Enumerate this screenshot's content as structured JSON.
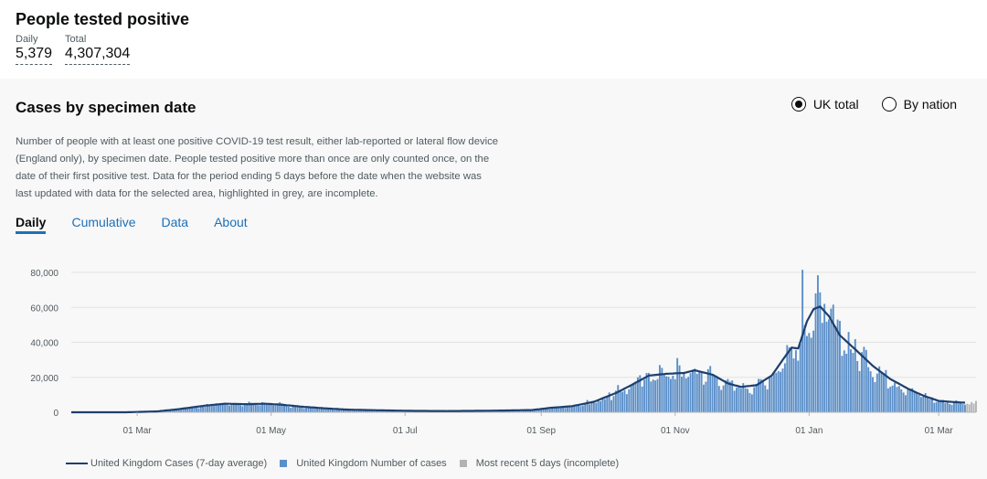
{
  "header": {
    "title": "People tested positive",
    "daily_label": "Daily",
    "daily_value": "5,379",
    "total_label": "Total",
    "total_value": "4,307,304"
  },
  "card": {
    "title": "Cases by specimen date",
    "radio_uk": "UK total",
    "radio_nation": "By nation",
    "selected_radio": "UK total",
    "description": "Number of people with at least one positive COVID-19 test result, either lab-reported or lateral flow device (England only), by specimen date. People tested positive more than once are only counted once, on the date of their first positive test. Data for the period ending 5 days before the date when the website was last updated with data for the selected area, highlighted in grey, are incomplete.",
    "tabs": [
      "Daily",
      "Cumulative",
      "Data",
      "About"
    ],
    "active_tab": "Daily"
  },
  "colors": {
    "bar": "#5b8fc9",
    "line": "#1d3f6e",
    "incomplete": "#b1b4b6",
    "link": "#1d70b8"
  },
  "legend": {
    "line": "United Kingdom Cases (7-day average)",
    "bars": "United Kingdom Number of cases",
    "incomplete": "Most recent 5 days (incomplete)"
  },
  "chart_data": {
    "type": "bar",
    "x_start": "2020-01-31",
    "x_end": "2021-03-18",
    "x_tick_labels": [
      {
        "date": "2020-03-01",
        "label": "01 Mar"
      },
      {
        "date": "2020-05-01",
        "label": "01 May"
      },
      {
        "date": "2020-07-01",
        "label": "01 Jul"
      },
      {
        "date": "2020-09-01",
        "label": "01 Sep"
      },
      {
        "date": "2020-11-01",
        "label": "01 Nov"
      },
      {
        "date": "2021-01-01",
        "label": "01 Jan"
      },
      {
        "date": "2021-03-01",
        "label": "01 Mar"
      }
    ],
    "y_ticks": [
      {
        "value": 0,
        "label": "0"
      },
      {
        "value": 20000,
        "label": "20,000"
      },
      {
        "value": 40000,
        "label": "40,000"
      },
      {
        "value": 60000,
        "label": "60,000"
      },
      {
        "value": 80000,
        "label": "80,000"
      }
    ],
    "ylim": [
      0,
      80000
    ],
    "grid": true,
    "legend_position": "bottom",
    "incomplete_days": 5,
    "seven_day_average": [
      {
        "date": "2020-01-31",
        "value": 0
      },
      {
        "date": "2020-02-25",
        "value": 0
      },
      {
        "date": "2020-03-10",
        "value": 500
      },
      {
        "date": "2020-03-20",
        "value": 1800
      },
      {
        "date": "2020-04-01",
        "value": 3800
      },
      {
        "date": "2020-04-10",
        "value": 4900
      },
      {
        "date": "2020-04-20",
        "value": 4600
      },
      {
        "date": "2020-04-28",
        "value": 4900
      },
      {
        "date": "2020-05-05",
        "value": 4400
      },
      {
        "date": "2020-05-15",
        "value": 3200
      },
      {
        "date": "2020-05-25",
        "value": 2300
      },
      {
        "date": "2020-06-05",
        "value": 1500
      },
      {
        "date": "2020-06-20",
        "value": 1100
      },
      {
        "date": "2020-07-05",
        "value": 800
      },
      {
        "date": "2020-07-20",
        "value": 700
      },
      {
        "date": "2020-08-01",
        "value": 800
      },
      {
        "date": "2020-08-15",
        "value": 1000
      },
      {
        "date": "2020-08-28",
        "value": 1300
      },
      {
        "date": "2020-09-05",
        "value": 2500
      },
      {
        "date": "2020-09-15",
        "value": 3500
      },
      {
        "date": "2020-09-25",
        "value": 6000
      },
      {
        "date": "2020-10-05",
        "value": 11000
      },
      {
        "date": "2020-10-12",
        "value": 15500
      },
      {
        "date": "2020-10-20",
        "value": 21000
      },
      {
        "date": "2020-10-28",
        "value": 22000
      },
      {
        "date": "2020-11-05",
        "value": 22500
      },
      {
        "date": "2020-11-10",
        "value": 24000
      },
      {
        "date": "2020-11-18",
        "value": 21500
      },
      {
        "date": "2020-11-25",
        "value": 16500
      },
      {
        "date": "2020-12-01",
        "value": 14500
      },
      {
        "date": "2020-12-08",
        "value": 15500
      },
      {
        "date": "2020-12-15",
        "value": 21000
      },
      {
        "date": "2020-12-20",
        "value": 30000
      },
      {
        "date": "2020-12-24",
        "value": 37000
      },
      {
        "date": "2020-12-27",
        "value": 36500
      },
      {
        "date": "2020-12-31",
        "value": 52000
      },
      {
        "date": "2021-01-03",
        "value": 59000
      },
      {
        "date": "2021-01-06",
        "value": 60500
      },
      {
        "date": "2021-01-10",
        "value": 55000
      },
      {
        "date": "2021-01-15",
        "value": 44000
      },
      {
        "date": "2021-01-22",
        "value": 36000
      },
      {
        "date": "2021-01-30",
        "value": 26500
      },
      {
        "date": "2021-02-07",
        "value": 19000
      },
      {
        "date": "2021-02-15",
        "value": 13500
      },
      {
        "date": "2021-02-22",
        "value": 9500
      },
      {
        "date": "2021-03-01",
        "value": 6500
      },
      {
        "date": "2021-03-08",
        "value": 5800
      },
      {
        "date": "2021-03-13",
        "value": 5500
      }
    ],
    "daily_peaks": [
      {
        "date": "2020-10-25",
        "value": 27000
      },
      {
        "date": "2020-11-02",
        "value": 31000
      },
      {
        "date": "2020-12-29",
        "value": 81500
      },
      {
        "date": "2021-01-04",
        "value": 68000
      },
      {
        "date": "2021-01-08",
        "value": 62000
      }
    ]
  }
}
